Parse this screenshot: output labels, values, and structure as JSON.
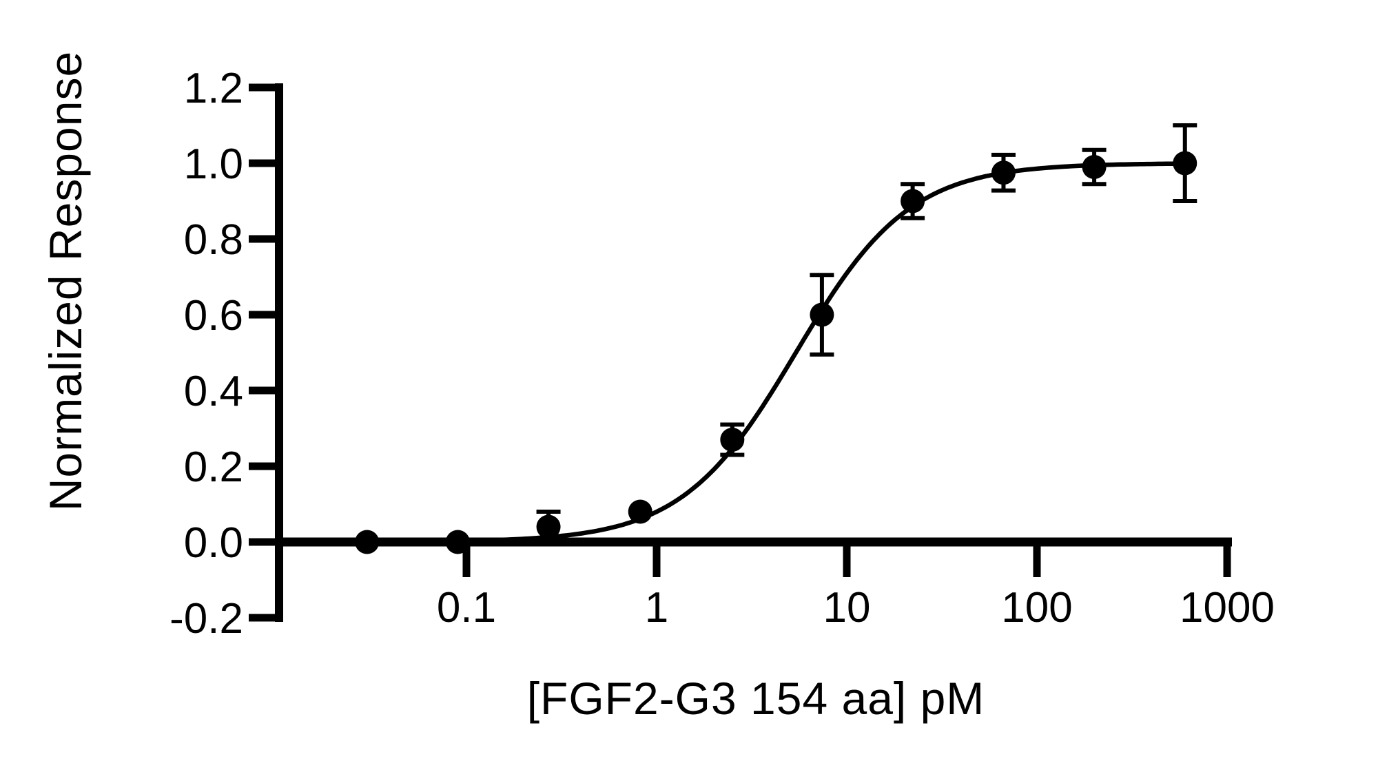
{
  "figure": {
    "background_color": "#ffffff",
    "foreground_color": "#000000"
  },
  "chart_data": {
    "type": "scatter",
    "title": "",
    "xlabel": "[FGF2-G3 154 aa] pM",
    "ylabel": "Normalized Response",
    "x_scale": "log10",
    "xlim": [
      0.0105,
      1000
    ],
    "ylim": [
      -0.2,
      1.2
    ],
    "grid": false,
    "legend": "none",
    "x_ticks": [
      0.1,
      1,
      10,
      100,
      1000
    ],
    "x_tick_labels": [
      "0.1",
      "1",
      "10",
      "100",
      "1000"
    ],
    "y_ticks": [
      1.2,
      1.0,
      0.8,
      0.6,
      0.4,
      0.2,
      0.0,
      -0.2
    ],
    "y_tick_labels": [
      "1.2",
      "1.0",
      "0.8",
      "0.6",
      "0.4",
      "0.2",
      "0.0",
      "-0.2"
    ],
    "series": [
      {
        "name": "FGF2-G3 154 aa",
        "marker": "filled-circle",
        "color": "#000000",
        "error_bars": "vertical-sd",
        "points": [
          {
            "x": 0.03,
            "y": 0.0,
            "err": 0
          },
          {
            "x": 0.09,
            "y": 0.0,
            "err": 0
          },
          {
            "x": 0.27,
            "y": 0.04,
            "err": 0.04
          },
          {
            "x": 0.82,
            "y": 0.08,
            "err": 0
          },
          {
            "x": 2.5,
            "y": 0.27,
            "err": 0.04
          },
          {
            "x": 7.4,
            "y": 0.6,
            "err": 0.105
          },
          {
            "x": 22.2,
            "y": 0.9,
            "err": 0.045
          },
          {
            "x": 66.7,
            "y": 0.975,
            "err": 0.047
          },
          {
            "x": 200,
            "y": 0.99,
            "err": 0.045
          },
          {
            "x": 600,
            "y": 1.0,
            "err": 0.1
          }
        ]
      }
    ],
    "fit_curve": {
      "model": "4PL-sigmoid",
      "bottom": 0,
      "top": 1.0,
      "ec50_pM": 5.4,
      "hill": 1.45,
      "x_start": 0.0105,
      "x_end": 600
    }
  }
}
